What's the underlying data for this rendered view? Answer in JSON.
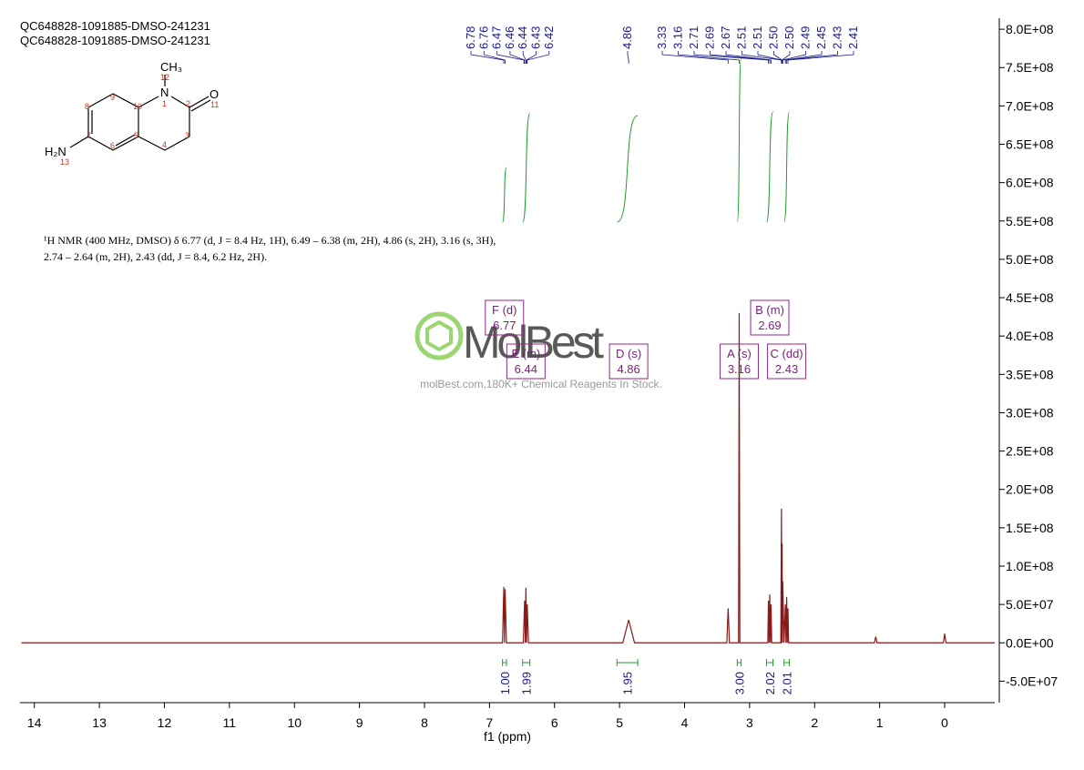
{
  "chart_data": {
    "type": "nmr",
    "title_lines": [
      "QC648828-1091885-DMSO-241231",
      "QC648828-1091885-DMSO-241231"
    ],
    "description_lines": [
      "¹H NMR (400 MHz, DMSO) δ 6.77 (d, J = 8.4 Hz, 1H), 6.49 – 6.38 (m, 2H), 4.86 (s, 2H), 3.16 (s, 3H),",
      "2.74 – 2.64 (m, 2H), 2.43 (dd, J = 8.4, 6.2 Hz, 2H)."
    ],
    "xlabel": "f1 (ppm)",
    "xlim": [
      14.22,
      -0.77
    ],
    "xticks": [
      14,
      13,
      12,
      11,
      10,
      9,
      8,
      7,
      6,
      5,
      4,
      3,
      2,
      1,
      0
    ],
    "ylim": [
      -78000000,
      812000000
    ],
    "yticks": [
      {
        "value": -50000000,
        "label": "-5.0E+07"
      },
      {
        "value": 0,
        "label": "0.0E+00"
      },
      {
        "value": 50000000,
        "label": "5.0E+07"
      },
      {
        "value": 100000000,
        "label": "1.0E+08"
      },
      {
        "value": 150000000,
        "label": "1.5E+08"
      },
      {
        "value": 200000000,
        "label": "2.0E+08"
      },
      {
        "value": 250000000,
        "label": "2.5E+08"
      },
      {
        "value": 300000000,
        "label": "3.0E+08"
      },
      {
        "value": 350000000,
        "label": "3.5E+08"
      },
      {
        "value": 400000000,
        "label": "4.0E+08"
      },
      {
        "value": 450000000,
        "label": "4.5E+08"
      },
      {
        "value": 500000000,
        "label": "5.0E+08"
      },
      {
        "value": 550000000,
        "label": "5.5E+08"
      },
      {
        "value": 600000000,
        "label": "6.0E+08"
      },
      {
        "value": 650000000,
        "label": "6.5E+08"
      },
      {
        "value": 700000000,
        "label": "7.0E+08"
      },
      {
        "value": 750000000,
        "label": "7.5E+08"
      },
      {
        "value": 800000000,
        "label": "8.0E+08"
      }
    ],
    "color": "#8b1a1a",
    "x": [
      14.2,
      6.8,
      6.78,
      6.77,
      6.76,
      6.74,
      6.48,
      6.46,
      6.45,
      6.44,
      6.43,
      6.42,
      6.4,
      4.95,
      4.86,
      4.77,
      3.35,
      3.33,
      3.31,
      3.17,
      3.16,
      3.15,
      2.72,
      2.71,
      2.7,
      2.69,
      2.68,
      2.67,
      2.66,
      2.52,
      2.51,
      2.505,
      2.5,
      2.495,
      2.49,
      2.47,
      2.45,
      2.44,
      2.43,
      2.42,
      2.41,
      2.4,
      1.08,
      1.06,
      1.04,
      0.02,
      0,
      -0.02,
      -0.77
    ],
    "values": [
      0,
      0,
      73000000,
      0,
      70000000,
      0,
      0,
      55000000,
      0,
      72000000,
      0,
      50000000,
      0,
      0,
      30000000,
      0,
      0,
      45000000,
      0,
      0,
      430000000,
      0,
      0,
      55000000,
      0,
      63000000,
      0,
      50000000,
      0,
      0,
      175000000,
      0,
      130000000,
      0,
      80000000,
      0,
      50000000,
      0,
      60000000,
      0,
      45000000,
      0,
      0,
      8000000,
      0,
      0,
      12000000,
      0,
      0
    ],
    "peak_labels": [
      {
        "value": 6.78,
        "label": "6.78"
      },
      {
        "value": 6.76,
        "label": "6.76"
      },
      {
        "value": 6.47,
        "label": "6.47"
      },
      {
        "value": 6.46,
        "label": "6.46"
      },
      {
        "value": 6.44,
        "label": "6.44"
      },
      {
        "value": 6.43,
        "label": "6.43"
      },
      {
        "value": 6.42,
        "label": "6.42"
      },
      {
        "value": 4.86,
        "label": "4.86"
      },
      {
        "value": 3.33,
        "label": "3.33"
      },
      {
        "value": 3.16,
        "label": "3.16"
      },
      {
        "value": 2.71,
        "label": "2.71"
      },
      {
        "value": 2.69,
        "label": "2.69"
      },
      {
        "value": 2.67,
        "label": "2.67"
      },
      {
        "value": 2.51,
        "label": "2.51"
      },
      {
        "value": 2.51,
        "label": "2.51"
      },
      {
        "value": 2.5,
        "label": "2.50"
      },
      {
        "value": 2.5,
        "label": "2.50"
      },
      {
        "value": 2.49,
        "label": "2.49"
      },
      {
        "value": 2.45,
        "label": "2.45"
      },
      {
        "value": 2.43,
        "label": "2.43"
      },
      {
        "value": 2.41,
        "label": "2.41"
      }
    ],
    "integrals": [
      {
        "range": [
          6.8,
          6.74
        ],
        "value": 1,
        "label": "1.00"
      },
      {
        "range": [
          6.49,
          6.38
        ],
        "value": 1.99,
        "label": "1.99"
      },
      {
        "range": [
          5.04,
          4.72
        ],
        "value": 1.95,
        "label": "1.95"
      },
      {
        "range": [
          3.19,
          3.13
        ],
        "value": 3,
        "label": "3.00"
      },
      {
        "range": [
          2.74,
          2.64
        ],
        "value": 2.02,
        "label": "2.02"
      },
      {
        "range": [
          2.47,
          2.39
        ],
        "value": 2.01,
        "label": "2.01"
      }
    ],
    "multiplets": [
      {
        "label": "F (d)",
        "shift": 6.77
      },
      {
        "label": "E (m)",
        "shift": 6.44
      },
      {
        "label": "D (s)",
        "shift": 4.86
      },
      {
        "label": "A (s)",
        "shift": 3.16
      },
      {
        "label": "B (m)",
        "shift": 2.69
      },
      {
        "label": "C (dd)",
        "shift": 2.43
      }
    ]
  },
  "structure": {
    "atoms": [
      "CH₃",
      "N",
      "O",
      "H₂N"
    ],
    "numbers": [
      "12",
      "1",
      "2",
      "11",
      "3",
      "4",
      "5",
      "6",
      "7",
      "8",
      "9",
      "10",
      "13"
    ]
  },
  "watermark": {
    "logo": "MolBest",
    "tagline": "molBest.com,180K+ Chemical Reagents In Stock."
  }
}
